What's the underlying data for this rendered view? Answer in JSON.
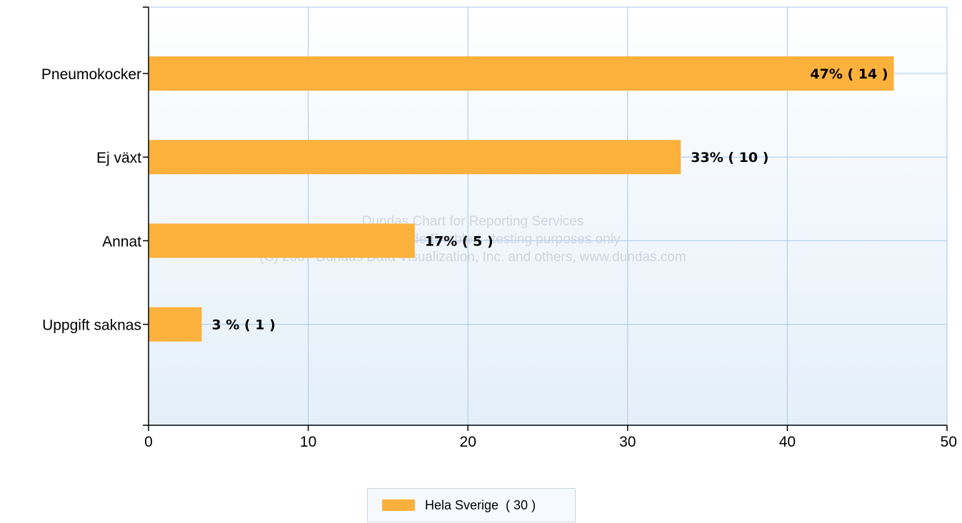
{
  "chart_data": {
    "type": "bar",
    "orientation": "horizontal",
    "categories": [
      "Pneumokocker",
      "Ej växt",
      "Annat",
      "Uppgift saknas"
    ],
    "series": [
      {
        "name": "Hela Sverige",
        "values": [
          46.67,
          33.33,
          16.67,
          3.33
        ],
        "labels": [
          "47% ( 14 )",
          "33% ( 10 )",
          "17% ( 5 )",
          "3 % ( 1 )"
        ]
      }
    ],
    "xlim": [
      0,
      50
    ],
    "xticks": [
      0,
      10,
      20,
      30,
      40,
      50
    ],
    "grid": true,
    "legend": {
      "position": "bottom-center",
      "label": "Hela Sverige  ( 30 )"
    },
    "watermark": [
      "Dundas Chart for Reporting Services",
      "Evaluation Mode Enabled - testing purposes only",
      "(C) 2007 Dundas Data Visualization, Inc. and others, www.dundas.com"
    ]
  },
  "colors": {
    "bar": "#fbb13c",
    "grid": "#a8c6ee",
    "axis": "#000000",
    "plot_top": "#ffffff",
    "plot_bottom": "#e4eff9"
  }
}
